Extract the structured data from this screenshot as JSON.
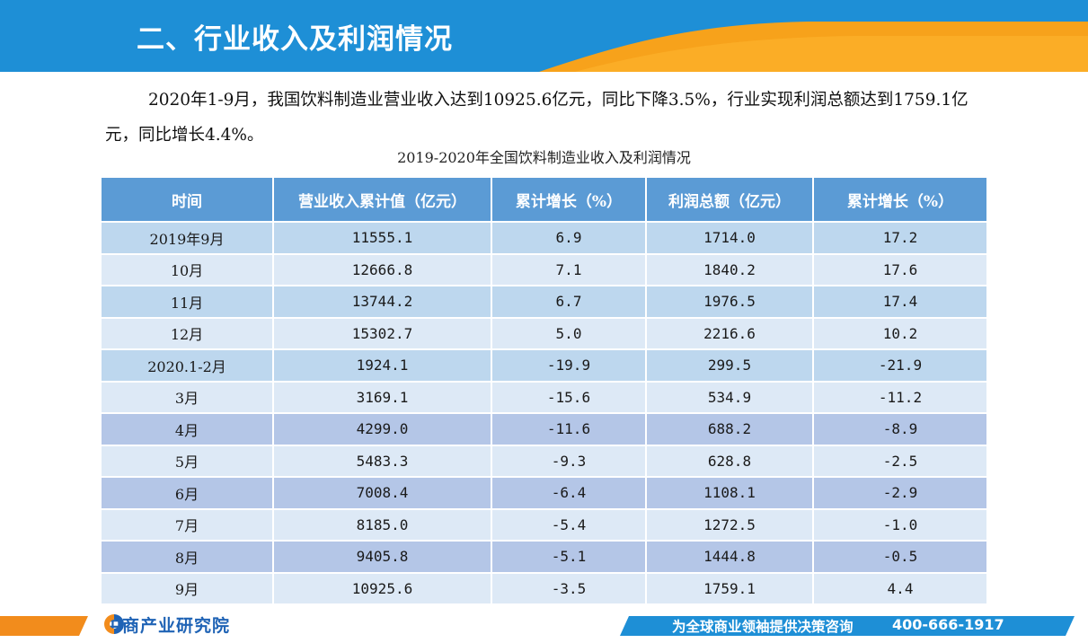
{
  "header": {
    "title": "二、行业收入及利润情况"
  },
  "intro": {
    "paragraph": "2020年1-9月，我国饮料制造业营业收入达到10925.6亿元，同比下降3.5%，行业实现利润总额达到1759.1亿元，同比增长4.4%。"
  },
  "table": {
    "caption": "2019-2020年全国饮料制造业收入及利润情况",
    "columns": [
      "时间",
      "营业收入累计值（亿元）",
      "累计增长（%）",
      "利润总额（亿元）",
      "累计增长（%）"
    ],
    "rows": [
      [
        "2019年9月",
        "11555.1",
        "6.9",
        "1714.0",
        "17.2"
      ],
      [
        "10月",
        "12666.8",
        "7.1",
        "1840.2",
        "17.6"
      ],
      [
        "11月",
        "13744.2",
        "6.7",
        "1976.5",
        "17.4"
      ],
      [
        "12月",
        "15302.7",
        "5.0",
        "2216.6",
        "10.2"
      ],
      [
        "2020.1-2月",
        "1924.1",
        "-19.9",
        "299.5",
        "-21.9"
      ],
      [
        "3月",
        "3169.1",
        "-15.6",
        "534.9",
        "-11.2"
      ],
      [
        "4月",
        "4299.0",
        "-11.6",
        "688.2",
        "-8.9"
      ],
      [
        "5月",
        "5483.3",
        "-9.3",
        "628.8",
        "-2.5"
      ],
      [
        "6月",
        "7008.4",
        "-6.4",
        "1108.1",
        "-2.9"
      ],
      [
        "7月",
        "8185.0",
        "-5.4",
        "1272.5",
        "-1.0"
      ],
      [
        "8月",
        "9405.8",
        "-5.1",
        "1444.8",
        "-0.5"
      ],
      [
        "9月",
        "10925.6",
        "-3.5",
        "1759.1",
        "4.4"
      ]
    ],
    "row_styles": [
      "a",
      "b",
      "a",
      "b",
      "a",
      "b",
      "c",
      "b",
      "c",
      "b",
      "c",
      "b"
    ]
  },
  "footer": {
    "logo_text": "中商产业研究院",
    "slogan": "为全球商业领袖提供决策咨询",
    "phone": "400-666-1917"
  },
  "colors": {
    "header_blue": "#1e8fd6",
    "accent_orange": "#f7a21b",
    "table_header": "#5b9bd5"
  }
}
